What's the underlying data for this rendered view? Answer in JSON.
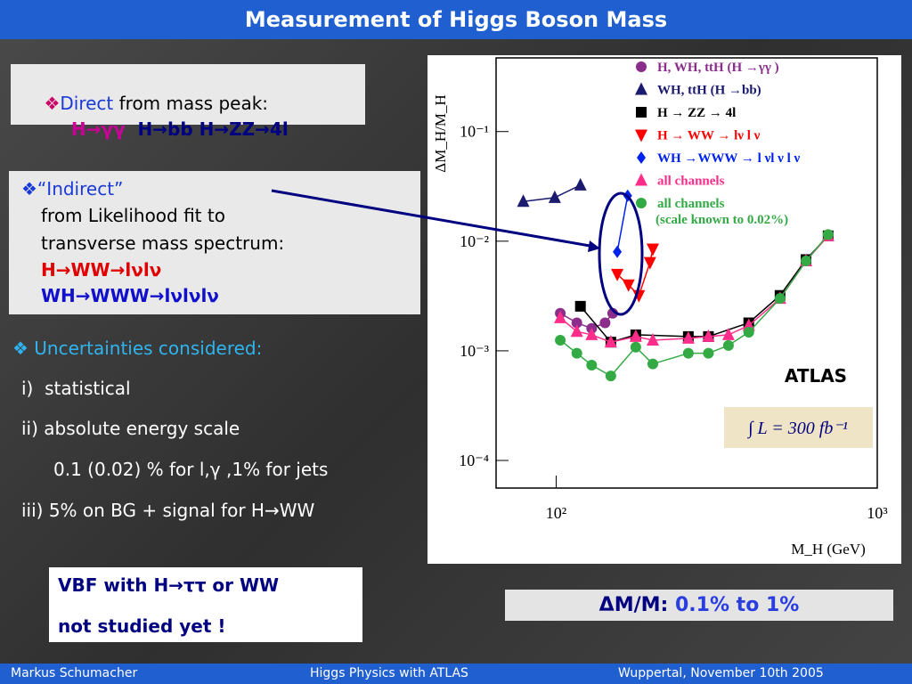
{
  "header": {
    "title": "Measurement of Higgs Boson Mass"
  },
  "direct_box": {
    "line1": [
      "❖",
      "Direct",
      " from mass peak:"
    ],
    "line2": [
      "H→γγ",
      "H→bb",
      "H→ZZ→4l"
    ]
  },
  "indirect_box": {
    "lines": [
      "❖“Indirect”",
      "from Likelihood fit to",
      "transverse mass spectrum:",
      "H→WW→lνlν",
      "WH→WWW→lνlνlν"
    ]
  },
  "uncertainties": {
    "heading": "❖ Uncertainties considered:",
    "items": [
      "i)  statistical",
      "ii) absolute energy scale",
      "0.1 (0.02) % for l,γ ,1% for jets",
      "iii) 5% on BG + signal for H→WW"
    ]
  },
  "note_box": {
    "lines": [
      "VBF with H→ττ or WW",
      "not studied yet !"
    ]
  },
  "result_box": {
    "label": "ΔM/M:",
    "value": "0.1% to 1%"
  },
  "footer": {
    "left": "Markus  Schumacher",
    "center": "Higgs Physics  with ATLAS",
    "right": "Wuppertal, November 10th 2005"
  },
  "chart_data": {
    "type": "line",
    "xscale": "log",
    "yscale": "log",
    "x_label": "M_H (GeV)",
    "y_label": "ΔM_H/M_H",
    "annotations": [
      "ATLAS",
      "∫ L = 300 fb⁻¹"
    ],
    "xlim": [
      65,
      1000
    ],
    "ylim": [
      5.6e-05,
      0.47
    ],
    "xticks": [
      {
        "value": 100,
        "label": "10²"
      },
      {
        "value": 1000,
        "label": "10³"
      }
    ],
    "yticks": [
      {
        "value": 0.1,
        "label": "10⁻¹"
      },
      {
        "value": 0.01,
        "label": "10⁻²"
      },
      {
        "value": 0.001,
        "label": "10⁻³"
      },
      {
        "value": 0.0001,
        "label": "10⁻⁴"
      }
    ],
    "series": [
      {
        "name": "H, WH, ttH (H →γγ )",
        "color": "#8b2d8b",
        "marker": "circle",
        "x": [
          103,
          116,
          129,
          142,
          150
        ],
        "values": [
          0.0022,
          0.0018,
          0.0016,
          0.0018,
          0.0022
        ]
      },
      {
        "name": "WH, ttH (H →bb)",
        "color": "#1a1a6e",
        "marker": "triangle",
        "x": [
          79,
          99,
          119
        ],
        "values": [
          0.023,
          0.025,
          0.0325
        ]
      },
      {
        "name": "H → ZZ → 4l",
        "color": "#000000",
        "marker": "square",
        "x": [
          119,
          148,
          177,
          258,
          298,
          398,
          498,
          600,
          703
        ],
        "values": [
          0.00255,
          0.0012,
          0.0014,
          0.00135,
          0.00135,
          0.0018,
          0.0032,
          0.0068,
          0.0112
        ]
      },
      {
        "name": "H → WW → lν l ν",
        "color": "#ff0000",
        "marker": "triangle-down",
        "x": [
          155,
          168,
          181,
          196,
          200
        ],
        "values": [
          0.005,
          0.004,
          0.0032,
          0.0064,
          0.0085
        ]
      },
      {
        "name": "WH →WWW → l νl ν l ν",
        "color": "#0022ee",
        "marker": "diamond",
        "x": [
          155,
          167
        ],
        "values": [
          0.008,
          0.026
        ]
      },
      {
        "name": "all channels",
        "color": "#ff2d8a",
        "marker": "triangle",
        "x": [
          103,
          116,
          129,
          148,
          177,
          200,
          258,
          298,
          344,
          398,
          498,
          600,
          703
        ],
        "values": [
          0.002,
          0.0015,
          0.0014,
          0.0012,
          0.00135,
          0.00125,
          0.0013,
          0.00135,
          0.0014,
          0.0017,
          0.003,
          0.0066,
          0.0112
        ]
      },
      {
        "name": "all channels\n(scale known to 0.02%)",
        "color": "#33aa44",
        "marker": "circle",
        "x": [
          103,
          116,
          129,
          148,
          177,
          200,
          258,
          298,
          344,
          398,
          498,
          600,
          703
        ],
        "values": [
          0.00125,
          0.00095,
          0.00074,
          0.00059,
          0.00108,
          0.00076,
          0.00095,
          0.00095,
          0.00112,
          0.00148,
          0.003,
          0.0066,
          0.0115
        ]
      }
    ]
  }
}
